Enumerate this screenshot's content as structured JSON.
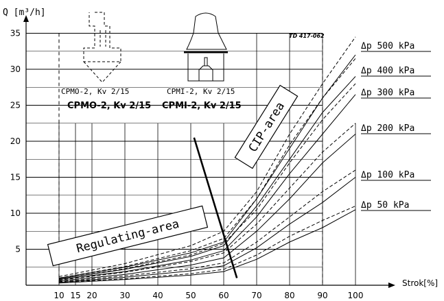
{
  "chart_data": {
    "type": "line",
    "y_axis_label": "Q [m³/h]",
    "x_axis_label": "Strok[%]",
    "xlim": [
      0,
      100
    ],
    "ylim": [
      0,
      37
    ],
    "x_ticks": [
      "10",
      "15",
      "20",
      "30",
      "40",
      "50",
      "60",
      "70",
      "80",
      "90",
      "100"
    ],
    "y_ticks": [
      "5",
      "10",
      "15",
      "20",
      "25",
      "30",
      "35"
    ],
    "reference": "TD 417-062",
    "valve_captions": [
      {
        "small": "CPMO-2, Kv 2/15",
        "bold": "CPMO-2, Kv 2/15"
      },
      {
        "small": "CPMI-2, Kv 2/15",
        "bold": "CPMI-2, Kv 2/15"
      }
    ],
    "regions": [
      {
        "name": "Regulating-area"
      },
      {
        "name": "CIP-area"
      }
    ],
    "pressure_labels": [
      "Δp 500 kPa",
      "Δp 400 kPa",
      "Δp 300 kPa",
      "Δp 200 kPa",
      "Δp 100 kPa",
      "Δp 50 kPa"
    ],
    "series": [
      {
        "label_index": 0,
        "style": "dashed",
        "x": [
          10,
          30,
          50,
          60,
          70,
          80,
          90,
          100
        ],
        "y": [
          1.2,
          3.0,
          5.5,
          7.5,
          13.0,
          21.0,
          28.0,
          34.5
        ]
      },
      {
        "label_index": 0,
        "style": "solid",
        "x": [
          10,
          30,
          50,
          60,
          70,
          80,
          90,
          100
        ],
        "y": [
          1.0,
          2.5,
          4.5,
          6.0,
          12.0,
          19.0,
          26.0,
          32.0
        ]
      },
      {
        "label_index": 1,
        "style": "dashed",
        "x": [
          10,
          30,
          50,
          60,
          70,
          80,
          90,
          100
        ],
        "y": [
          1.0,
          2.6,
          4.8,
          6.5,
          12.0,
          19.5,
          26.0,
          31.5
        ]
      },
      {
        "label_index": 1,
        "style": "solid",
        "x": [
          10,
          30,
          50,
          60,
          70,
          80,
          90,
          100
        ],
        "y": [
          0.9,
          2.2,
          4.0,
          5.5,
          11.0,
          17.5,
          24.0,
          29.0
        ]
      },
      {
        "label_index": 2,
        "style": "dashed",
        "x": [
          10,
          30,
          50,
          60,
          70,
          80,
          90,
          100
        ],
        "y": [
          0.9,
          2.3,
          4.2,
          5.8,
          10.5,
          17.0,
          23.0,
          28.0
        ]
      },
      {
        "label_index": 2,
        "style": "solid",
        "x": [
          10,
          30,
          50,
          60,
          70,
          80,
          90,
          100
        ],
        "y": [
          0.8,
          1.9,
          3.5,
          4.8,
          9.5,
          15.5,
          21.0,
          26.5
        ]
      },
      {
        "label_index": 3,
        "style": "dashed",
        "x": [
          10,
          30,
          50,
          60,
          70,
          80,
          90,
          100
        ],
        "y": [
          0.7,
          1.8,
          3.3,
          4.5,
          8.5,
          13.5,
          18.5,
          22.5
        ]
      },
      {
        "label_index": 3,
        "style": "solid",
        "x": [
          10,
          30,
          50,
          60,
          70,
          80,
          90,
          100
        ],
        "y": [
          0.6,
          1.5,
          2.8,
          3.8,
          7.5,
          12.0,
          17.0,
          21.0
        ]
      },
      {
        "label_index": 4,
        "style": "dashed",
        "x": [
          10,
          30,
          50,
          60,
          70,
          80,
          90,
          100
        ],
        "y": [
          0.5,
          1.3,
          2.3,
          3.1,
          6.0,
          9.5,
          13.0,
          16.0
        ]
      },
      {
        "label_index": 4,
        "style": "solid",
        "x": [
          10,
          30,
          50,
          60,
          70,
          80,
          90,
          100
        ],
        "y": [
          0.4,
          1.1,
          2.0,
          2.7,
          5.2,
          8.5,
          11.5,
          15.0
        ]
      },
      {
        "label_index": 5,
        "style": "dashed",
        "x": [
          10,
          30,
          50,
          60,
          70,
          80,
          90,
          100
        ],
        "y": [
          0.4,
          0.9,
          1.6,
          2.2,
          4.2,
          6.8,
          9.0,
          11.0
        ]
      },
      {
        "label_index": 5,
        "style": "solid",
        "x": [
          10,
          30,
          50,
          60,
          70,
          80,
          90,
          100
        ],
        "y": [
          0.3,
          0.8,
          1.4,
          1.9,
          3.6,
          6.0,
          8.0,
          10.5
        ]
      }
    ],
    "divider": {
      "x": [
        51,
        64
      ],
      "y": [
        20.5,
        1.0
      ]
    },
    "grid": true,
    "legend": "none"
  }
}
